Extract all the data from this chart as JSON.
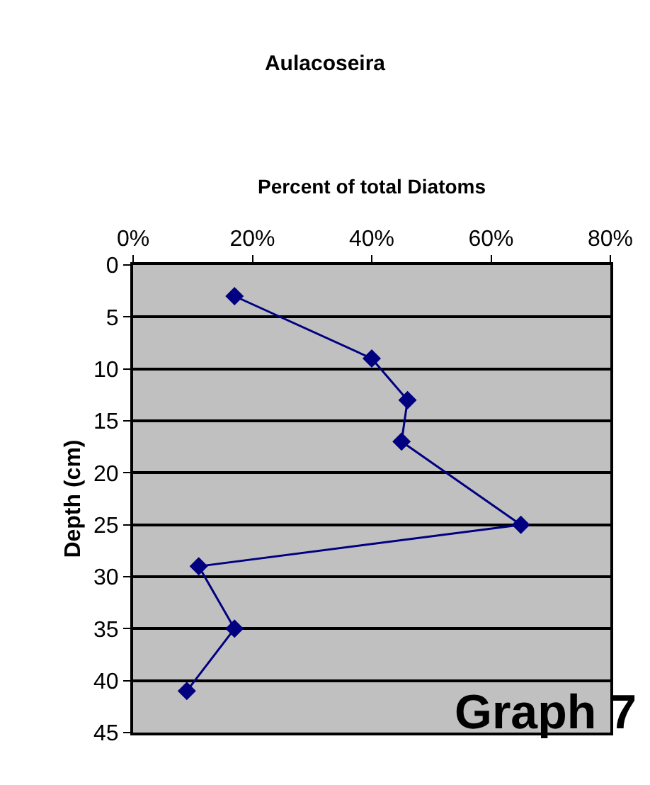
{
  "chart_data": {
    "type": "line",
    "title": "Aulacoseira",
    "xlabel": "Percent of total Diatoms",
    "ylabel": "Depth (cm)",
    "x": [
      17,
      40,
      46,
      45,
      65,
      11,
      17,
      9
    ],
    "series": [
      {
        "color": "#000080",
        "values": [
          3,
          9,
          13,
          17,
          25,
          29,
          35,
          41
        ]
      }
    ],
    "xlim": [
      0,
      80
    ],
    "xticks": [
      {
        "value": 0,
        "label": "0%"
      },
      {
        "value": 20,
        "label": "20%"
      },
      {
        "value": 40,
        "label": "40%"
      },
      {
        "value": 60,
        "label": "60%"
      },
      {
        "value": 80,
        "label": "80%"
      }
    ],
    "ylim": [
      45,
      0
    ],
    "yticks": [
      0,
      5,
      10,
      15,
      20,
      25,
      30,
      35,
      40,
      45
    ],
    "grid": "y",
    "marker": "diamond",
    "line_style": "solid",
    "legend": false,
    "annotations": [
      "Graph 7"
    ]
  }
}
